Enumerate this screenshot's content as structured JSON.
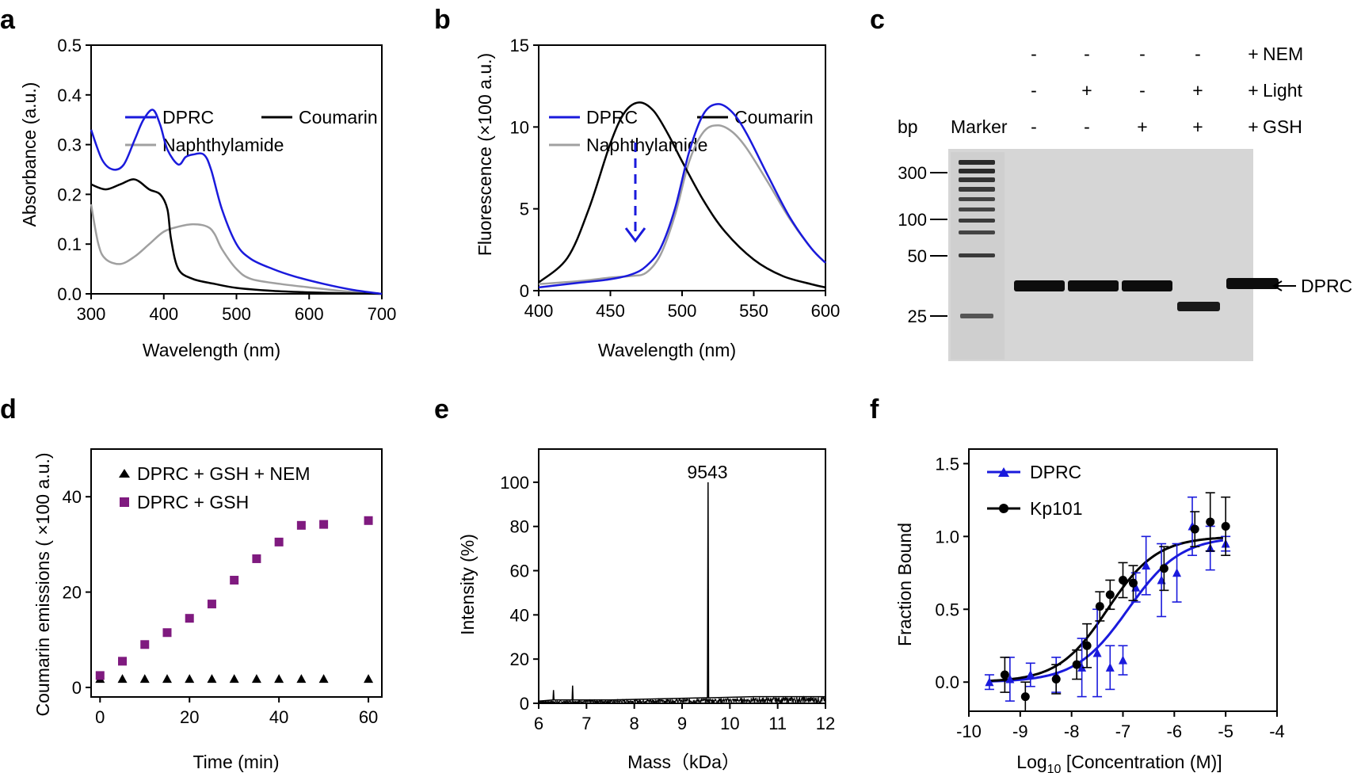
{
  "panel_letters": [
    "a",
    "b",
    "c",
    "d",
    "e",
    "f"
  ],
  "colors": {
    "dprc": "#1a1adc",
    "coumarin": "#000000",
    "naphthylamide": "#a0a0a0",
    "nem_marker": "#000000",
    "gsh_marker": "#7f1a7f"
  },
  "chart_data": [
    {
      "panel": "a",
      "type": "line",
      "xlabel": "Wavelength (nm)",
      "ylabel": "Absorbance (a.u.)",
      "xlim": [
        300,
        700
      ],
      "ylim": [
        0.0,
        0.5
      ],
      "xticks": [
        "300",
        "400",
        "500",
        "600",
        "700"
      ],
      "yticks": [
        "0.0",
        "0.1",
        "0.2",
        "0.3",
        "0.4",
        "0.5"
      ],
      "legend_position": "top",
      "series": [
        {
          "name": "DPRC",
          "x": [
            300,
            315,
            330,
            345,
            360,
            372,
            385,
            395,
            405,
            420,
            430,
            440,
            455,
            465,
            480,
            500,
            520,
            550,
            580,
            620,
            660,
            700
          ],
          "y": [
            0.33,
            0.27,
            0.25,
            0.26,
            0.31,
            0.35,
            0.37,
            0.34,
            0.29,
            0.26,
            0.275,
            0.28,
            0.28,
            0.25,
            0.17,
            0.1,
            0.07,
            0.05,
            0.035,
            0.02,
            0.008,
            0.0
          ]
        },
        {
          "name": "Coumarin",
          "x": [
            300,
            320,
            340,
            360,
            380,
            395,
            405,
            410,
            420,
            440,
            470,
            500,
            550,
            600,
            650,
            700
          ],
          "y": [
            0.22,
            0.21,
            0.22,
            0.23,
            0.21,
            0.2,
            0.17,
            0.11,
            0.05,
            0.03,
            0.02,
            0.012,
            0.006,
            0.003,
            0.001,
            0.0
          ]
        },
        {
          "name": "Naphthylamide",
          "x": [
            300,
            310,
            320,
            340,
            360,
            380,
            400,
            420,
            440,
            460,
            470,
            480,
            500,
            520,
            560,
            600,
            650,
            700
          ],
          "y": [
            0.18,
            0.1,
            0.07,
            0.06,
            0.075,
            0.1,
            0.125,
            0.135,
            0.14,
            0.135,
            0.12,
            0.09,
            0.05,
            0.03,
            0.02,
            0.013,
            0.005,
            0.0
          ]
        }
      ]
    },
    {
      "panel": "b",
      "type": "line",
      "xlabel": "Wavelength (nm)",
      "ylabel": "Fluorescence (×100 a.u.)",
      "xlim": [
        400,
        600
      ],
      "ylim": [
        0,
        15
      ],
      "xticks": [
        "400",
        "450",
        "500",
        "550",
        "600"
      ],
      "yticks": [
        "0",
        "5",
        "10",
        "15"
      ],
      "legend_position": "top",
      "series": [
        {
          "name": "DPRC",
          "x": [
            400,
            430,
            450,
            465,
            475,
            485,
            495,
            505,
            515,
            525,
            535,
            545,
            560,
            575,
            590,
            600
          ],
          "y": [
            0.2,
            0.5,
            0.7,
            1.0,
            1.5,
            2.6,
            5.0,
            8.5,
            10.8,
            11.4,
            10.9,
            9.6,
            7.0,
            4.5,
            2.6,
            1.7
          ]
        },
        {
          "name": "Coumarin",
          "x": [
            400,
            420,
            435,
            450,
            460,
            470,
            480,
            490,
            500,
            515,
            530,
            550,
            570,
            590,
            600
          ],
          "y": [
            0.5,
            2.0,
            5.0,
            9.0,
            10.9,
            11.5,
            11.0,
            9.6,
            7.9,
            5.5,
            3.6,
            1.9,
            0.9,
            0.4,
            0.2
          ]
        },
        {
          "name": "Naphthylamide",
          "x": [
            400,
            430,
            450,
            465,
            475,
            485,
            495,
            505,
            515,
            525,
            535,
            545,
            560,
            575,
            590,
            600
          ],
          "y": [
            0.4,
            0.6,
            0.8,
            0.9,
            1.1,
            2.2,
            4.6,
            7.9,
            9.7,
            10.1,
            9.7,
            8.7,
            6.6,
            4.4,
            2.6,
            1.7
          ]
        }
      ]
    },
    {
      "panel": "c",
      "type": "table",
      "header_rows": [
        {
          "label": "NEM",
          "values": [
            "-",
            "-",
            "-",
            "-",
            "+"
          ]
        },
        {
          "label": "Light",
          "values": [
            "-",
            "+",
            "-",
            "+",
            "+"
          ]
        },
        {
          "label": "GSH",
          "values": [
            "-",
            "-",
            "+",
            "+",
            "+"
          ]
        }
      ],
      "column_header": "bp",
      "marker_label": "Marker",
      "size_labels": [
        "300",
        "100",
        "50",
        "25"
      ],
      "band_label": "DPRC"
    },
    {
      "panel": "d",
      "type": "scatter",
      "xlabel": "Time (min)",
      "ylabel": "Coumarin emissions ( ×100 a.u.)",
      "xlim": [
        -2,
        63
      ],
      "ylim": [
        -2,
        50
      ],
      "xticks": [
        "0",
        "20",
        "40",
        "60"
      ],
      "yticks": [
        "0",
        "20",
        "40"
      ],
      "legend_position": "top-left",
      "series": [
        {
          "name": "DPRC + GSH + NEM",
          "marker": "triangle",
          "x": [
            0,
            5,
            10,
            15,
            20,
            25,
            30,
            35,
            40,
            45,
            50,
            60
          ],
          "y": [
            1.8,
            1.8,
            1.8,
            1.8,
            1.8,
            1.8,
            1.8,
            1.8,
            1.8,
            1.8,
            1.8,
            1.8
          ]
        },
        {
          "name": "DPRC + GSH",
          "marker": "square",
          "x": [
            0,
            5,
            10,
            15,
            20,
            25,
            30,
            35,
            40,
            45,
            50,
            60
          ],
          "y": [
            2.5,
            5.5,
            9,
            11.5,
            14.5,
            17.5,
            22.5,
            27,
            30.5,
            34,
            34.2,
            35
          ]
        }
      ]
    },
    {
      "panel": "e",
      "type": "line",
      "xlabel": "Mass（kDa）",
      "ylabel": "Intensity (%)",
      "xlim": [
        6,
        12
      ],
      "ylim": [
        0,
        115
      ],
      "xticks": [
        "6",
        "7",
        "8",
        "9",
        "10",
        "11",
        "12"
      ],
      "yticks": [
        "0",
        "20",
        "40",
        "60",
        "80",
        "100"
      ],
      "peak_label": "9543",
      "series": [
        {
          "x": [
            6.0,
            6.3,
            6.31,
            6.32,
            6.7,
            6.71,
            6.72,
            7.5,
            8.5,
            9.5,
            9.53,
            9.543,
            9.556,
            9.6,
            10.5,
            11.5,
            12.0
          ],
          "y": [
            1,
            1.5,
            6,
            1.5,
            1.5,
            8,
            1.5,
            1.5,
            2,
            2.5,
            2.5,
            100,
            2.5,
            2.5,
            3,
            3,
            3
          ]
        }
      ]
    },
    {
      "panel": "f",
      "type": "scatter",
      "xlabel": "Log10 [Concentration (M)]",
      "ylabel": "Fraction Bound",
      "xlim": [
        -10,
        -4
      ],
      "ylim": [
        -0.2,
        1.6
      ],
      "xticks": [
        "-10",
        "-9",
        "-8",
        "-7",
        "-6",
        "-5",
        "-4"
      ],
      "yticks": [
        "0.0",
        "0.5",
        "1.0",
        "1.5"
      ],
      "legend_position": "top-left",
      "series": [
        {
          "name": "DPRC",
          "marker": "triangle",
          "x": [
            -9.6,
            -9.2,
            -8.8,
            -8.3,
            -7.8,
            -7.5,
            -7.25,
            -7.0,
            -6.75,
            -6.55,
            -6.25,
            -5.95,
            -5.65,
            -5.3,
            -5.0
          ],
          "y": [
            0.0,
            0.02,
            0.05,
            0.05,
            0.1,
            0.2,
            0.1,
            0.15,
            0.65,
            0.8,
            0.7,
            0.75,
            1.07,
            0.92,
            0.95
          ],
          "err": [
            0.05,
            0.15,
            0.08,
            0.12,
            0.2,
            0.3,
            0.15,
            0.1,
            0.1,
            0.2,
            0.25,
            0.2,
            0.2,
            0.15,
            0.05
          ]
        },
        {
          "name": "Kp101",
          "marker": "circle",
          "x": [
            -9.3,
            -8.9,
            -8.3,
            -7.9,
            -7.7,
            -7.45,
            -7.25,
            -7.0,
            -6.8,
            -6.2,
            -5.6,
            -5.3,
            -5.0
          ],
          "y": [
            0.05,
            -0.1,
            0.02,
            0.12,
            0.25,
            0.52,
            0.6,
            0.7,
            0.68,
            0.78,
            1.05,
            1.1,
            1.07
          ],
          "err": [
            0.12,
            0.1,
            0.1,
            0.1,
            0.15,
            0.1,
            0.1,
            0.12,
            0.12,
            0.15,
            0.12,
            0.2,
            0.2
          ]
        }
      ],
      "fits": [
        {
          "name": "DPRC",
          "logEC50": -6.9,
          "hill": 0.85,
          "bottom": 0.0,
          "top": 1.0
        },
        {
          "name": "Kp101",
          "logEC50": -7.3,
          "hill": 0.9,
          "bottom": 0.0,
          "top": 1.0
        }
      ]
    }
  ]
}
